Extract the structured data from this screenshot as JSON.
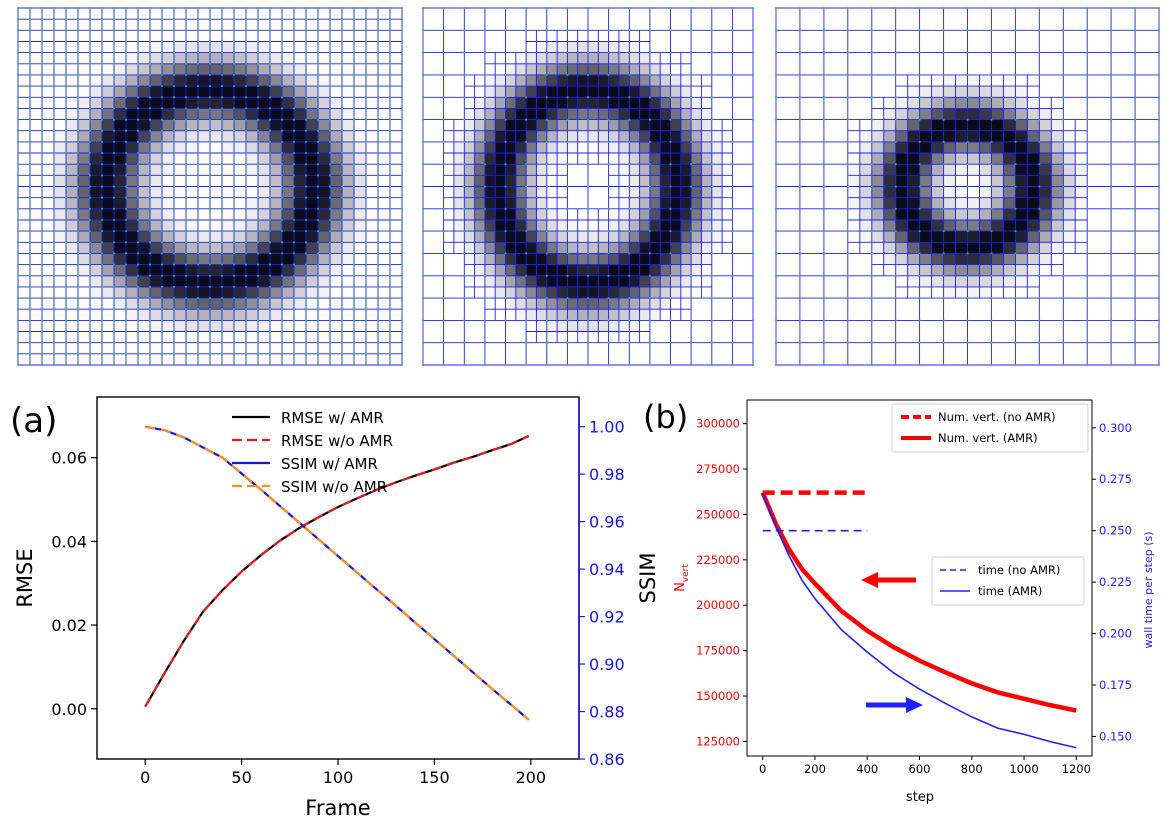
{
  "colors": {
    "mesh_line": "#1f1fff",
    "mesh_vertex": "#22c322",
    "ring": "#0b0b1a",
    "black": "#000000",
    "red": "#e41a1c",
    "blue": "#1515e6",
    "orange": "#ff8c1a",
    "panel_b_red": "#ff0000",
    "panel_b_blue": "#2020ff"
  },
  "mesh_panels": [
    {
      "id": "uniform",
      "refinement": "uniform",
      "ring_radius": 0.27,
      "ring_width": 0.085
    },
    {
      "id": "amr-early",
      "refinement": "adaptive",
      "ring_radius": 0.27,
      "ring_width": 0.085
    },
    {
      "id": "amr-late",
      "refinement": "adaptive",
      "ring_radius": 0.17,
      "ring_width": 0.075
    }
  ],
  "chart_data": [
    {
      "panel_label": "(a)",
      "type": "line",
      "xlabel": "Frame",
      "ylabel_left": "RMSE",
      "ylabel_right": "SSIM",
      "xlim": [
        -25,
        225
      ],
      "ylim_left": [
        -0.012,
        0.0745
      ],
      "ylim_right": [
        0.86,
        1.0125
      ],
      "x_ticks": [
        0,
        50,
        100,
        150,
        200
      ],
      "y_ticks_left": [
        "0.00",
        "0.02",
        "0.04",
        "0.06"
      ],
      "y_ticks_right": [
        "0.86",
        "0.88",
        "0.90",
        "0.92",
        "0.94",
        "0.96",
        "0.98",
        "1.00"
      ],
      "legend": [
        "RMSE w/ AMR",
        "RMSE w/o AMR",
        "SSIM w/ AMR",
        "SSIM w/o AMR"
      ],
      "series": [
        {
          "name": "RMSE w/ AMR",
          "axis": "left",
          "color": "#000000",
          "dash": "solid",
          "x": [
            0,
            5,
            10,
            20,
            30,
            40,
            50,
            60,
            70,
            80,
            90,
            100,
            110,
            120,
            130,
            140,
            150,
            160,
            170,
            180,
            190,
            199
          ],
          "values": [
            0.0005,
            0.0045,
            0.0085,
            0.0162,
            0.0232,
            0.0283,
            0.0328,
            0.0367,
            0.0402,
            0.0432,
            0.0458,
            0.0482,
            0.0503,
            0.0523,
            0.0541,
            0.0557,
            0.0572,
            0.0588,
            0.0602,
            0.0618,
            0.0633,
            0.0652
          ]
        },
        {
          "name": "RMSE w/o AMR",
          "axis": "left",
          "color": "#e41a1c",
          "dash": "dashed",
          "x": [
            0,
            5,
            10,
            20,
            30,
            40,
            50,
            60,
            70,
            80,
            90,
            100,
            110,
            120,
            130,
            140,
            150,
            160,
            170,
            180,
            190,
            199
          ],
          "values": [
            0.0005,
            0.0045,
            0.0085,
            0.0162,
            0.0232,
            0.0283,
            0.0328,
            0.0367,
            0.0402,
            0.0432,
            0.0458,
            0.0482,
            0.0503,
            0.0523,
            0.0541,
            0.0557,
            0.0572,
            0.0588,
            0.0602,
            0.0618,
            0.0633,
            0.0652
          ]
        },
        {
          "name": "SSIM w/ AMR",
          "axis": "right",
          "color": "#1515e6",
          "dash": "solid",
          "x": [
            0,
            10,
            20,
            40,
            60,
            80,
            100,
            120,
            140,
            160,
            180,
            199
          ],
          "values": [
            1.0,
            0.9985,
            0.9955,
            0.987,
            0.9735,
            0.9595,
            0.9455,
            0.9315,
            0.9175,
            0.9035,
            0.8895,
            0.8765
          ]
        },
        {
          "name": "SSIM w/o AMR",
          "axis": "right",
          "color": "#ff8c1a",
          "dash": "dashed",
          "x": [
            0,
            10,
            20,
            40,
            60,
            80,
            100,
            120,
            140,
            160,
            180,
            199
          ],
          "values": [
            1.0,
            0.9985,
            0.9955,
            0.987,
            0.9735,
            0.9595,
            0.9455,
            0.9315,
            0.9175,
            0.9035,
            0.8895,
            0.8765
          ]
        }
      ]
    },
    {
      "panel_label": "(b)",
      "type": "line",
      "xlabel": "step",
      "ylabel_left": "N",
      "ylabel_left_sub": "vert",
      "ylabel_right": "wall time per step (s)",
      "xlim": [
        -60,
        1260
      ],
      "ylim_left": [
        117000,
        313000
      ],
      "ylim_right": [
        0.1405,
        0.3135
      ],
      "x_ticks": [
        0,
        200,
        400,
        600,
        800,
        1000,
        1200
      ],
      "y_ticks_left": [
        "125000",
        "150000",
        "175000",
        "200000",
        "225000",
        "250000",
        "275000",
        "300000"
      ],
      "y_ticks_right": [
        "0.150",
        "0.175",
        "0.200",
        "0.225",
        "0.250",
        "0.275",
        "0.300"
      ],
      "legend_top": [
        "Num. vert. (no AMR)",
        "Num. vert. (AMR)"
      ],
      "legend_mid": [
        "time (no AMR)",
        "time (AMR)"
      ],
      "series": [
        {
          "name": "Num. vert. (no AMR)",
          "axis": "left",
          "color": "#ff0000",
          "dash": "dashed",
          "width": "thick",
          "x": [
            0,
            400
          ],
          "values": [
            262000,
            262000
          ]
        },
        {
          "name": "Num. vert. (AMR)",
          "axis": "left",
          "color": "#ff0000",
          "dash": "solid",
          "width": "thick",
          "x": [
            0,
            50,
            100,
            150,
            200,
            300,
            400,
            500,
            600,
            700,
            800,
            900,
            1000,
            1100,
            1200
          ],
          "values": [
            262000,
            245000,
            231000,
            220000,
            212000,
            197000,
            186000,
            177000,
            169500,
            163000,
            157000,
            152000,
            148500,
            145000,
            142000
          ]
        },
        {
          "name": "time (no AMR)",
          "axis": "right",
          "color": "#2020ff",
          "dash": "dashed",
          "width": "thin",
          "x": [
            0,
            400
          ],
          "values": [
            0.25,
            0.25
          ]
        },
        {
          "name": "time (AMR)",
          "axis": "right",
          "color": "#2020ff",
          "dash": "solid",
          "width": "thin",
          "x": [
            0,
            50,
            100,
            150,
            200,
            300,
            400,
            500,
            600,
            700,
            800,
            900,
            1000,
            1100,
            1200
          ],
          "values": [
            0.268,
            0.252,
            0.238,
            0.226,
            0.217,
            0.202,
            0.191,
            0.181,
            0.173,
            0.166,
            0.1595,
            0.154,
            0.151,
            0.1475,
            0.1445
          ]
        }
      ]
    }
  ]
}
